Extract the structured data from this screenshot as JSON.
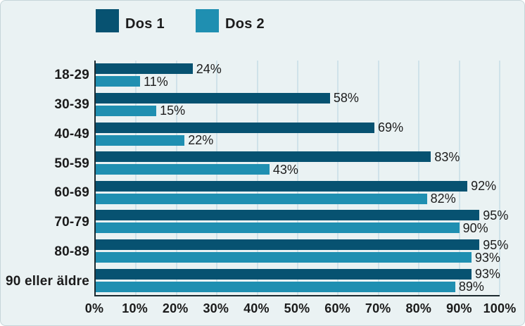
{
  "legend": {
    "items": [
      {
        "label": "Dos 1",
        "color": "#075271"
      },
      {
        "label": "Dos 2",
        "color": "#1f8fb1"
      }
    ]
  },
  "chart_data": {
    "type": "bar",
    "orientation": "horizontal",
    "title": "",
    "categories": [
      "18-29",
      "30-39",
      "40-49",
      "50-59",
      "60-69",
      "70-79",
      "80-89",
      "90 eller äldre"
    ],
    "series": [
      {
        "name": "Dos 1",
        "color": "#075271",
        "values": [
          24,
          58,
          69,
          83,
          92,
          95,
          95,
          93
        ]
      },
      {
        "name": "Dos 2",
        "color": "#1f8fb1",
        "values": [
          11,
          15,
          22,
          43,
          82,
          90,
          93,
          89
        ]
      }
    ],
    "value_labels": [
      [
        "24%",
        "58%",
        "69%",
        "83%",
        "92%",
        "95%",
        "95%",
        "93%"
      ],
      [
        "11%",
        "15%",
        "22%",
        "43%",
        "82%",
        "90%",
        "93%",
        "89%"
      ]
    ],
    "xlim": [
      0,
      100
    ],
    "x_ticks": [
      "0%",
      "10%",
      "20%",
      "30%",
      "40%",
      "50%",
      "60%",
      "70%",
      "80%",
      "90%",
      "100%"
    ],
    "grid": true,
    "legend_position": "top"
  },
  "colors": {
    "background": "#eaf2f3",
    "gridline": "#cfe2e9",
    "axis": "#1c2a30",
    "text": "#1b1b1b"
  }
}
